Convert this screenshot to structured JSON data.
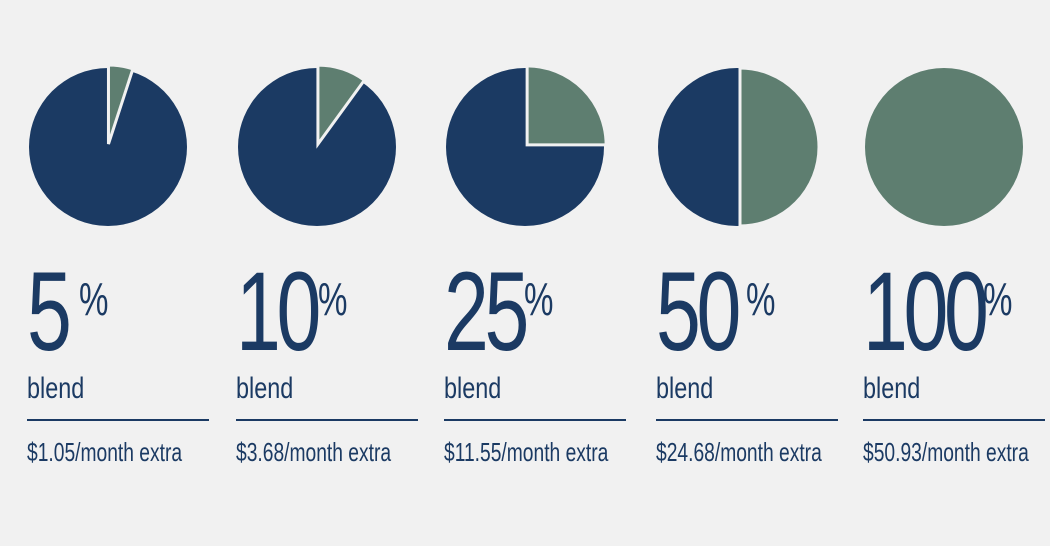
{
  "chart_data": {
    "type": "pie",
    "colors": {
      "blend": "#5e7e70",
      "remainder": "#1b3a63",
      "background": "#f1f1f1"
    },
    "items": [
      {
        "percent": 5,
        "percent_label": "5",
        "percent_sign": "%",
        "label": "blend",
        "cost": "$1.05/month extra"
      },
      {
        "percent": 10,
        "percent_label": "10",
        "percent_sign": "%",
        "label": "blend",
        "cost": "$3.68/month extra"
      },
      {
        "percent": 25,
        "percent_label": "25",
        "percent_sign": "%",
        "label": "blend",
        "cost": "$11.55/month extra"
      },
      {
        "percent": 50,
        "percent_label": "50",
        "percent_sign": "%",
        "label": "blend",
        "cost": "$24.68/month extra"
      },
      {
        "percent": 100,
        "percent_label": "100",
        "percent_sign": "%",
        "label": "blend",
        "cost": "$50.93/month extra"
      }
    ]
  }
}
